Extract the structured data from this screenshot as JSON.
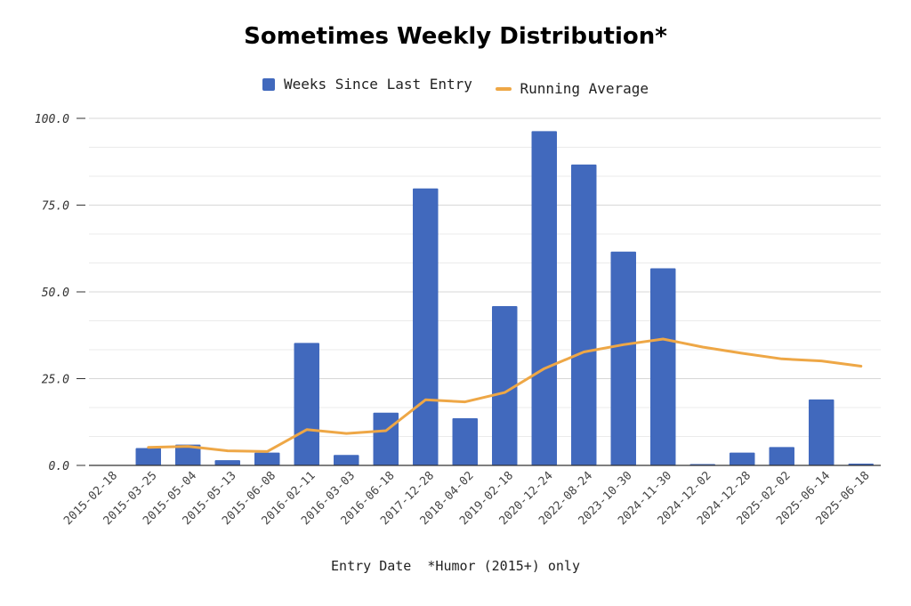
{
  "colors": {
    "bar": "#4169bd",
    "line": "#eea746",
    "grid": "#d7d7d7",
    "axis": "#333333"
  },
  "chart_data": {
    "type": "bar",
    "title": "Sometimes Weekly Distribution*",
    "xlabel": "Entry Date  *Humor (2015+) only",
    "ylabel": "",
    "ylim": [
      0,
      100
    ],
    "yticks": [
      "0.0",
      "25.0",
      "50.0",
      "75.0",
      "100.0"
    ],
    "grid": true,
    "legend_position": "top",
    "categories": [
      "2015-02-18",
      "2015-03-25",
      "2015-05-04",
      "2015-05-13",
      "2015-06-08",
      "2016-02-11",
      "2016-03-03",
      "2016-06-18",
      "2017-12-28",
      "2018-04-02",
      "2019-02-18",
      "2020-12-24",
      "2022-08-24",
      "2023-10-30",
      "2024-11-30",
      "2024-12-02",
      "2024-12-28",
      "2025-02-02",
      "2025-06-14",
      "2025-06-18"
    ],
    "series": [
      {
        "name": "Weeks Since Last Entry",
        "kind": "bar",
        "values": [
          0,
          5,
          6,
          1.5,
          3.7,
          35.3,
          3,
          15.2,
          79.8,
          13.6,
          45.9,
          96.3,
          86.7,
          61.6,
          56.8,
          0.4,
          3.7,
          5.3,
          19,
          0.5
        ]
      },
      {
        "name": "Running Average",
        "kind": "line",
        "values": [
          null,
          5.2,
          5.5,
          4.2,
          4.0,
          10.3,
          9.2,
          10.0,
          18.9,
          18.3,
          21.0,
          27.9,
          32.7,
          34.8,
          36.4,
          34.1,
          32.3,
          30.7,
          30.1,
          28.6
        ]
      }
    ]
  }
}
